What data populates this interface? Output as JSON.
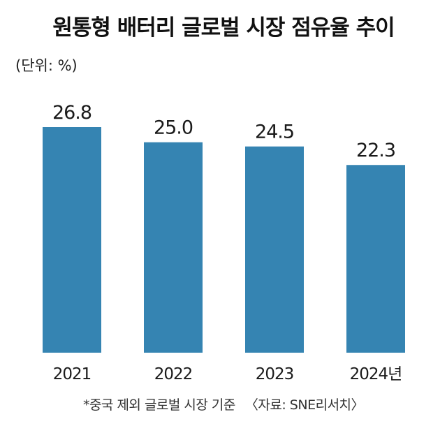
{
  "title": "원통형 배터리 글로벌 시장 점유율 추이",
  "unit_label": "(단위: %)",
  "footnote": "*중국 제외 글로벌 시장 기준",
  "source": "〈자료: SNE리서치〉",
  "colors": {
    "bar": "#3584b2"
  },
  "chart_data": {
    "type": "bar",
    "title": "원통형 배터리 글로벌 시장 점유율 추이",
    "xlabel": "",
    "ylabel": "",
    "unit": "%",
    "categories": [
      "2021",
      "2022",
      "2023",
      "2024년"
    ],
    "values": [
      26.8,
      25.0,
      24.5,
      22.3
    ],
    "value_labels": [
      "26.8",
      "25.0",
      "24.5",
      "22.3"
    ],
    "ylim": [
      0,
      26.8
    ],
    "grid": false,
    "legend": "none"
  }
}
